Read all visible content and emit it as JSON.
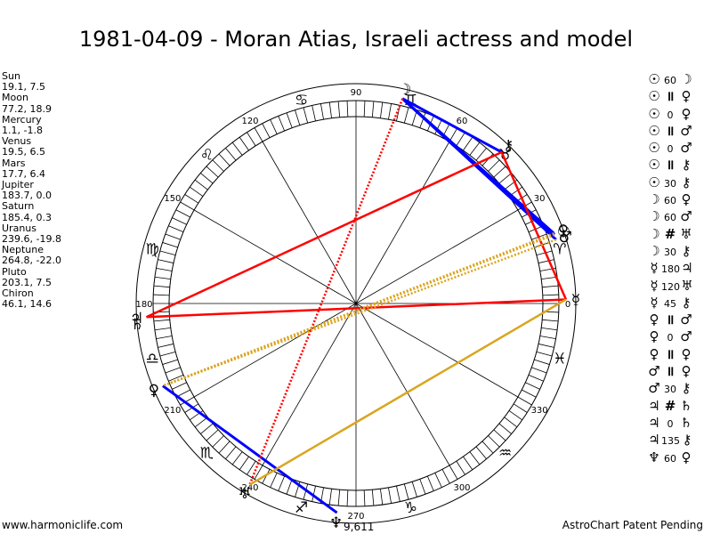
{
  "title": "1981-04-09 - Moran Atias, Israeli actress and model",
  "footer": {
    "left": "www.harmoniclife.com",
    "right": "AstroChart Patent Pending"
  },
  "planets": [
    {
      "name": "Sun",
      "pos": "19.1, 7.5"
    },
    {
      "name": "Moon",
      "pos": "77.2, 18.9"
    },
    {
      "name": "Mercury",
      "pos": "1.1, -1.8"
    },
    {
      "name": "Venus",
      "pos": "19.5, 6.5"
    },
    {
      "name": "Mars",
      "pos": "17.7, 6.4"
    },
    {
      "name": "Jupiter",
      "pos": "183.7, 0.0"
    },
    {
      "name": "Saturn",
      "pos": "185.4, 0.3"
    },
    {
      "name": "Uranus",
      "pos": "239.6, -19.8"
    },
    {
      "name": "Neptune",
      "pos": "264.8, -22.0"
    },
    {
      "name": "Pluto",
      "pos": "203.1, 7.5"
    },
    {
      "name": "Chiron",
      "pos": "46.1, 14.6"
    }
  ],
  "aspects": [
    {
      "p1": "☉",
      "asp": "60",
      "p2": "☽",
      "sym": false
    },
    {
      "p1": "☉",
      "asp": "॥",
      "p2": "♀",
      "sym": true
    },
    {
      "p1": "☉",
      "asp": "0",
      "p2": "♀",
      "sym": false
    },
    {
      "p1": "☉",
      "asp": "॥",
      "p2": "♂",
      "sym": true
    },
    {
      "p1": "☉",
      "asp": "0",
      "p2": "♂",
      "sym": false
    },
    {
      "p1": "☉",
      "asp": "॥",
      "p2": "⚷",
      "sym": true
    },
    {
      "p1": "☉",
      "asp": "30",
      "p2": "⚷",
      "sym": false
    },
    {
      "p1": "☽",
      "asp": "60",
      "p2": "♀",
      "sym": false
    },
    {
      "p1": "☽",
      "asp": "60",
      "p2": "♂",
      "sym": false
    },
    {
      "p1": "☽",
      "asp": "#",
      "p2": "♅",
      "sym": true
    },
    {
      "p1": "☽",
      "asp": "30",
      "p2": "⚷",
      "sym": false
    },
    {
      "p1": "☿",
      "asp": "180",
      "p2": "♃",
      "sym": false
    },
    {
      "p1": "☿",
      "asp": "120",
      "p2": "♅",
      "sym": false
    },
    {
      "p1": "☿",
      "asp": "45",
      "p2": "⚷",
      "sym": false
    },
    {
      "p1": "♀",
      "asp": "॥",
      "p2": "♂",
      "sym": true
    },
    {
      "p1": "♀",
      "asp": "0",
      "p2": "♂",
      "sym": false
    },
    {
      "p1": "♀",
      "asp": "॥",
      "p2": "♀",
      "sym": true
    },
    {
      "p1": "♂",
      "asp": "॥",
      "p2": "♀",
      "sym": true
    },
    {
      "p1": "♂",
      "asp": "30",
      "p2": "⚷",
      "sym": false
    },
    {
      "p1": "♃",
      "asp": "#",
      "p2": "♄",
      "sym": true
    },
    {
      "p1": "♃",
      "asp": "0",
      "p2": "♄",
      "sym": false
    },
    {
      "p1": "♃",
      "asp": "135",
      "p2": "⚷",
      "sym": false
    },
    {
      "p1": "♆",
      "asp": "60",
      "p2": "♀",
      "sym": false
    }
  ],
  "wheel": {
    "degree_labels": [
      "0",
      "30",
      "60",
      "90",
      "120",
      "150",
      "180",
      "210",
      "240",
      "270",
      "300",
      "330"
    ],
    "signs": [
      "♈",
      "♉",
      "♊",
      "♋",
      "♌",
      "♍",
      "♎",
      "♏",
      "♐",
      "♑",
      "♒",
      "♓"
    ],
    "planet_glyphs": [
      {
        "glyph": "☉",
        "lon": 19.1
      },
      {
        "glyph": "☽",
        "lon": 77.2
      },
      {
        "glyph": "☿",
        "lon": 1.1
      },
      {
        "glyph": "♀",
        "lon": 19.5
      },
      {
        "glyph": "♂",
        "lon": 17.7
      },
      {
        "glyph": "♃",
        "lon": 183.7
      },
      {
        "glyph": "♄",
        "lon": 185.4
      },
      {
        "glyph": "♅",
        "lon": 239.6
      },
      {
        "glyph": "♆",
        "lon": 264.8
      },
      {
        "glyph": "♀",
        "lon": 203.1
      },
      {
        "glyph": "⚷",
        "lon": 46.1
      }
    ],
    "bottom_label": "9,611",
    "aspect_lines": [
      {
        "from": 19.1,
        "to": 77.2,
        "color": "#0000ff",
        "style": "solid"
      },
      {
        "from": 19.5,
        "to": 77.2,
        "color": "#0000ff",
        "style": "solid"
      },
      {
        "from": 17.7,
        "to": 77.2,
        "color": "#0000ff",
        "style": "solid"
      },
      {
        "from": 46.1,
        "to": 77.2,
        "color": "#0000ff",
        "style": "solid"
      },
      {
        "from": 203.1,
        "to": 264.8,
        "color": "#0000ff",
        "style": "solid"
      },
      {
        "from": 46.1,
        "to": 1.1,
        "color": "#ff0000",
        "style": "solid"
      },
      {
        "from": 46.1,
        "to": 183.7,
        "color": "#ff0000",
        "style": "solid"
      },
      {
        "from": 1.1,
        "to": 183.7,
        "color": "#ff0000",
        "style": "solid"
      },
      {
        "from": 77.2,
        "to": 239.6,
        "color": "#ff0000",
        "style": "dotted"
      },
      {
        "from": 1.1,
        "to": 239.6,
        "color": "#daa520",
        "style": "solid"
      },
      {
        "from": 19.1,
        "to": 203.1,
        "color": "#daa520",
        "style": "dotted"
      },
      {
        "from": 19.5,
        "to": 203.1,
        "color": "#daa520",
        "style": "dotted"
      },
      {
        "from": 17.7,
        "to": 203.1,
        "color": "#daa520",
        "style": "dotted"
      }
    ]
  }
}
